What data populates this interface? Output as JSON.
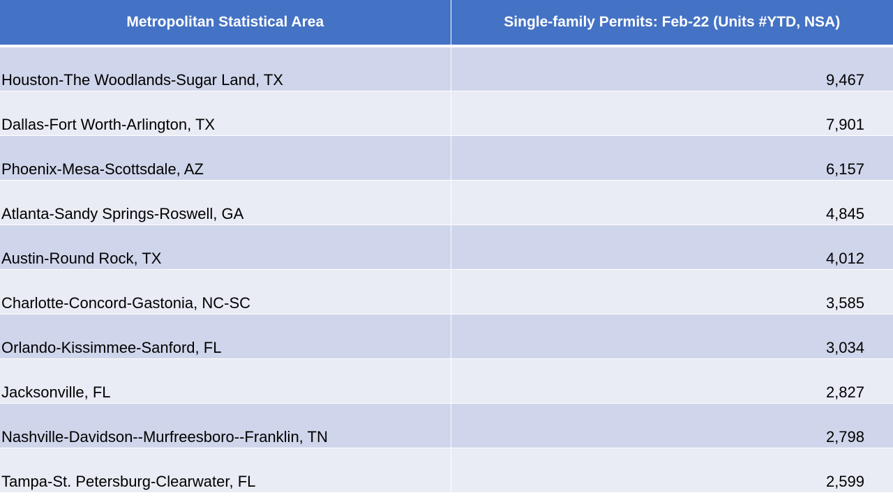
{
  "table": {
    "headers": {
      "area": "Metropolitan Statistical Area",
      "permits": "Single-family Permits: Feb-22 (Units #YTD, NSA)"
    },
    "rows": [
      {
        "area": "Houston-The Woodlands-Sugar Land, TX",
        "permits": "9,467"
      },
      {
        "area": "Dallas-Fort Worth-Arlington, TX",
        "permits": "7,901"
      },
      {
        "area": "Phoenix-Mesa-Scottsdale, AZ",
        "permits": "6,157"
      },
      {
        "area": "Atlanta-Sandy Springs-Roswell, GA",
        "permits": "4,845"
      },
      {
        "area": "Austin-Round Rock, TX",
        "permits": "4,012"
      },
      {
        "area": "Charlotte-Concord-Gastonia, NC-SC",
        "permits": "3,585"
      },
      {
        "area": "Orlando-Kissimmee-Sanford, FL",
        "permits": "3,034"
      },
      {
        "area": "Jacksonville, FL",
        "permits": "2,827"
      },
      {
        "area": "Nashville-Davidson--Murfreesboro--Franklin, TN",
        "permits": "2,798"
      },
      {
        "area": "Tampa-St. Petersburg-Clearwater, FL",
        "permits": "2,599"
      }
    ]
  },
  "colors": {
    "header_bg": "#4472c4",
    "row_odd_bg": "#cfd5ea",
    "row_even_bg": "#e9ebf5"
  }
}
